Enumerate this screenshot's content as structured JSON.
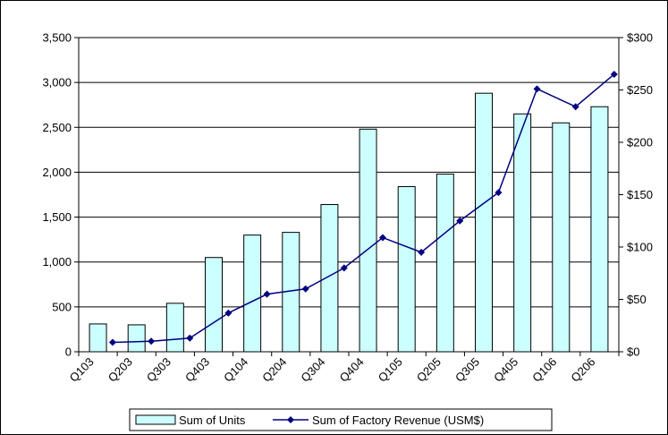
{
  "chart_data": {
    "type": "bar",
    "categories": [
      "Q103",
      "Q203",
      "Q303",
      "Q403",
      "Q104",
      "Q204",
      "Q304",
      "Q404",
      "Q105",
      "Q205",
      "Q305",
      "Q405",
      "Q106",
      "Q206"
    ],
    "series": [
      {
        "name": "Sum of Units",
        "type": "bar",
        "axis": "left",
        "color": "#ccffff",
        "values": [
          310,
          300,
          540,
          1050,
          1300,
          1330,
          1640,
          2480,
          1840,
          1980,
          2880,
          2650,
          2550,
          2730
        ]
      },
      {
        "name": "Sum of Factory Revenue (USM$)",
        "type": "line",
        "axis": "right",
        "color": "#000080",
        "values": [
          9,
          10,
          13,
          37,
          55,
          60,
          80,
          109,
          95,
          125,
          152,
          251,
          234,
          265
        ]
      }
    ],
    "left_axis": {
      "ylim": [
        0,
        3500
      ],
      "ticks": [
        0,
        500,
        1000,
        1500,
        2000,
        2500,
        3000,
        3500
      ],
      "tick_labels": [
        "0",
        "500",
        "1,000",
        "1,500",
        "2,000",
        "2,500",
        "3,000",
        "3,500"
      ]
    },
    "right_axis": {
      "ylim": [
        0,
        300
      ],
      "ticks": [
        0,
        50,
        100,
        150,
        200,
        250,
        300
      ],
      "tick_labels": [
        "$0",
        "$50",
        "$100",
        "$150",
        "$200",
        "$250",
        "$300"
      ]
    },
    "grid": true,
    "legend_position": "bottom"
  }
}
